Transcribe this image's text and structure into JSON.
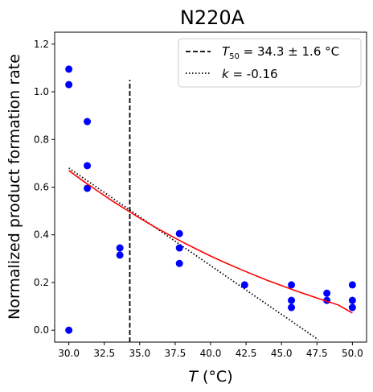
{
  "chart_data": {
    "type": "scatter",
    "title": "N220A",
    "xlabel": {
      "italic": "T",
      "rest": " (°C)"
    },
    "ylabel": "Normalized product formation rate",
    "xlim": [
      29.0,
      51.0
    ],
    "ylim": [
      -0.05,
      1.25
    ],
    "xticks": [
      "30.0",
      "32.5",
      "35.0",
      "37.5",
      "40.0",
      "42.5",
      "45.0",
      "47.5",
      "50.0"
    ],
    "yticks": [
      "0.0",
      "0.2",
      "0.4",
      "0.6",
      "0.8",
      "1.0",
      "1.2"
    ],
    "grid": false,
    "legend_position": "top-right",
    "series": [
      {
        "kind": "points",
        "color": "#0000ff",
        "points": [
          [
            30.0,
            1.095
          ],
          [
            30.0,
            1.03
          ],
          [
            30.0,
            0.0
          ],
          [
            31.3,
            0.875
          ],
          [
            31.3,
            0.69
          ],
          [
            31.3,
            0.595
          ],
          [
            33.6,
            0.345
          ],
          [
            33.6,
            0.315
          ],
          [
            37.8,
            0.405
          ],
          [
            37.8,
            0.345
          ],
          [
            37.8,
            0.28
          ],
          [
            42.4,
            0.19
          ],
          [
            45.7,
            0.19
          ],
          [
            45.7,
            0.125
          ],
          [
            45.7,
            0.095
          ],
          [
            48.2,
            0.155
          ],
          [
            48.2,
            0.125
          ],
          [
            50.0,
            0.19
          ],
          [
            50.0,
            0.125
          ],
          [
            50.0,
            0.095
          ]
        ]
      },
      {
        "kind": "fit-curve",
        "color": "#ff0000",
        "x": [
          30.0,
          31.0,
          32.0,
          33.0,
          34.0,
          35.0,
          36.0,
          37.0,
          38.0,
          39.0,
          40.0,
          41.0,
          42.0,
          43.0,
          44.0,
          45.0,
          46.0,
          47.0,
          48.0,
          49.0,
          50.0
        ],
        "y": [
          0.67,
          0.626,
          0.585,
          0.545,
          0.507,
          0.47,
          0.435,
          0.402,
          0.37,
          0.34,
          0.311,
          0.284,
          0.258,
          0.233,
          0.209,
          0.187,
          0.165,
          0.145,
          0.125,
          0.106,
          0.072
        ]
      },
      {
        "kind": "t50-line",
        "name_italic": "T",
        "name_sub": "50",
        "name_rest": " = 34.3 ± 1.6 °C",
        "x": 34.3,
        "y_range": [
          -0.05,
          1.05
        ],
        "color": "#000000",
        "dash": "dashed"
      },
      {
        "kind": "slope-line",
        "name_italic": "k",
        "name_rest": " = -0.16",
        "points": [
          [
            30.0,
            0.68
          ],
          [
            47.6,
            -0.04
          ]
        ],
        "color": "#000000",
        "dash": "dotted"
      }
    ]
  }
}
